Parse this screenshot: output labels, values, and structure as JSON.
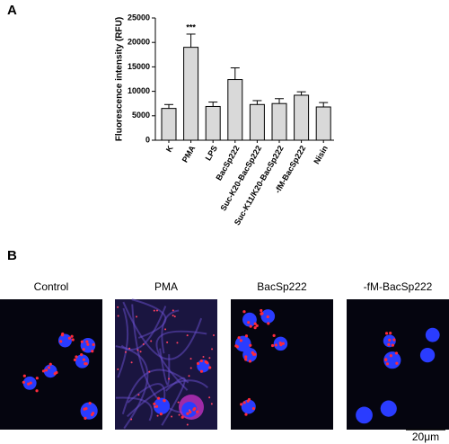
{
  "panel_labels": [
    "A",
    "B"
  ],
  "chart_data": {
    "type": "bar",
    "y_label": "Fluorescence intensity (RFU)",
    "categories": [
      "K",
      "PMA",
      "LPS",
      "BacSp222",
      "Suc-K20-BacSp222",
      "Suc-K11/K20-BacSp222",
      "-fM-BacSp222",
      "Nisin"
    ],
    "values": [
      6500,
      19000,
      6900,
      12400,
      7300,
      7500,
      9200,
      6800
    ],
    "errors": [
      800,
      2700,
      900,
      2400,
      800,
      1000,
      700,
      900
    ],
    "color": "#d9d9d9",
    "ylim": [
      0,
      25000
    ],
    "yticks": [
      0,
      5000,
      10000,
      15000,
      20000,
      25000
    ],
    "annotations": [
      {
        "text": "***",
        "category": "PMA"
      }
    ]
  },
  "images": {
    "titles": [
      "Control",
      "PMA",
      "BacSp222",
      "-fM-BacSp222"
    ],
    "scale_bar": "20μm"
  }
}
